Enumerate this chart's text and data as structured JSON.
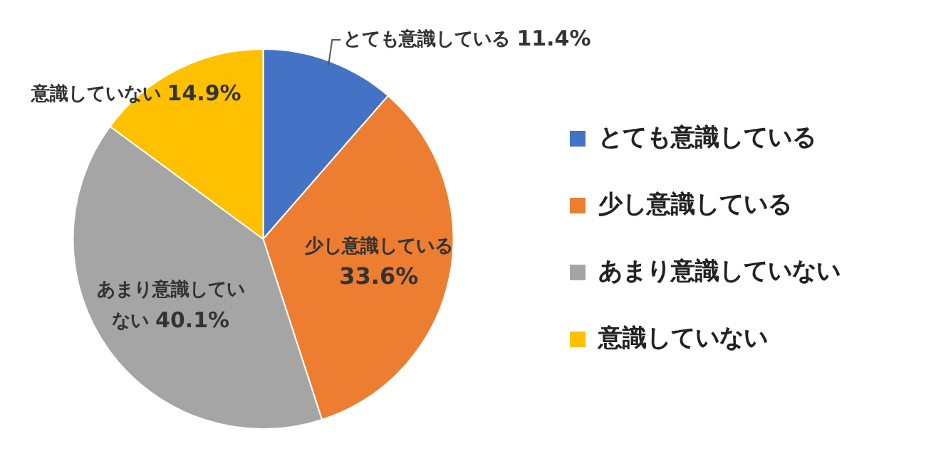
{
  "chart_data": {
    "type": "pie",
    "categories": [
      "とても意識している",
      "少し意識している",
      "あまり意識していない",
      "意識していない"
    ],
    "values": [
      11.4,
      33.6,
      40.1,
      14.9
    ],
    "value_labels": [
      "11.4%",
      "33.6%",
      "40.1%",
      "14.9%"
    ],
    "colors": [
      "#4472c4",
      "#ed7d31",
      "#a5a5a5",
      "#ffc000"
    ],
    "legend": "right"
  }
}
